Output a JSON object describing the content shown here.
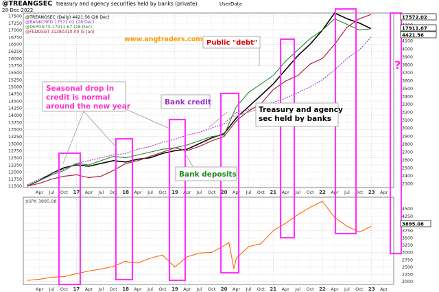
{
  "header": {
    "symbol": "@TREANGSEC",
    "description": "treasury and agency securities held by banks (private)",
    "source": "UserData",
    "date": "28-Dec-2022"
  },
  "legend": [
    {
      "label": "@TREANGSEC (Daily) 4421.56 (28 Dec)",
      "color": "#000000"
    },
    {
      "label": "@BANKCRED 17572.02 (28 Dec)",
      "color": "#9933cc"
    },
    {
      "label": "@DEPOSITS 17911.67 (28 Dec)",
      "color": "#228b22"
    },
    {
      "label": "@FEDDEBT 31380310.00 (5 Jan)",
      "color": "#b0203a"
    }
  ],
  "lower_legend": {
    "label": "$SPX 3895.08",
    "color": "#ff6600"
  },
  "watermark": "www.angtraders.com",
  "annotations": {
    "public_debt": "Public \"debt\"",
    "seasonal": "Seasonal drop in credit is normal around the new year",
    "bank_credit": "Bank credit",
    "treasury": "Treasury and agency sec held by banks",
    "bank_deposits": "Bank deposits",
    "question": "?"
  },
  "right_badges": {
    "upper": [
      "17572.02",
      "17911.67",
      "4421.56"
    ],
    "lower": "3895.08"
  },
  "chart_data": [
    {
      "type": "line",
      "title": "@TREANGSEC treasury and agency securities held by banks (private)",
      "left_axis_ticks": [
        11500,
        11750,
        12000,
        12250,
        12500,
        12750,
        13000,
        13250,
        13500,
        13750,
        14000,
        14250,
        14500,
        14750,
        15000,
        15250,
        15500,
        15750,
        16000,
        16250,
        16500,
        16750,
        17000,
        17250,
        17500
      ],
      "right_axis_ticks": [
        2300,
        2400,
        2500,
        2600,
        2700,
        2800,
        2900,
        3000,
        3100,
        3200,
        3300,
        3400,
        3500,
        3600,
        3700,
        3800,
        3900,
        4000,
        4100,
        4200,
        4300,
        4400
      ],
      "x_ticks": [
        "Apr",
        "Jul",
        "Oct",
        "17",
        "Apr",
        "Jul",
        "Oct",
        "18",
        "Apr",
        "Jul",
        "Oct",
        "19",
        "Apr",
        "Jul",
        "Oct",
        "20",
        "Apr",
        "Jul",
        "Oct",
        "21",
        "Apr",
        "Jul",
        "Oct",
        "22",
        "Apr",
        "Jul",
        "Oct",
        "23",
        "Apr"
      ],
      "x": [
        2016.0,
        2016.25,
        2016.5,
        2016.75,
        2017.0,
        2017.25,
        2017.5,
        2017.75,
        2018.0,
        2018.25,
        2018.5,
        2018.75,
        2019.0,
        2019.25,
        2019.5,
        2019.75,
        2020.0,
        2020.25,
        2020.5,
        2020.75,
        2021.0,
        2021.25,
        2021.5,
        2021.75,
        2022.0,
        2022.25,
        2022.5,
        2022.75,
        2022.99
      ],
      "series": [
        {
          "name": "@TREANGSEC",
          "axis": "left",
          "values": [
            11500,
            11700,
            11950,
            12150,
            12250,
            12200,
            12300,
            12400,
            12350,
            12450,
            12500,
            12650,
            12750,
            12800,
            13000,
            13200,
            13350,
            13900,
            14300,
            14700,
            15100,
            15600,
            16100,
            16500,
            17000,
            17600,
            17400,
            17250,
            17050
          ]
        },
        {
          "name": "@BANKCRED",
          "axis": "left",
          "values": [
            11550,
            11750,
            11950,
            12100,
            12300,
            12400,
            12500,
            12600,
            12650,
            12800,
            12900,
            13050,
            13150,
            13300,
            13400,
            13550,
            13700,
            14100,
            14200,
            14350,
            14450,
            14600,
            14800,
            15000,
            15250,
            15600,
            16000,
            16300,
            16750
          ]
        },
        {
          "name": "@DEPOSITS",
          "axis": "left",
          "values": [
            11500,
            11700,
            11900,
            12050,
            12300,
            12250,
            12400,
            12550,
            12500,
            12600,
            12700,
            12800,
            12850,
            12950,
            13100,
            13250,
            13300,
            14300,
            14800,
            15100,
            15400,
            15900,
            16300,
            16700,
            17000,
            17400,
            17200,
            17000,
            17050
          ]
        },
        {
          "name": "@FEDDEBT",
          "axis": "left",
          "values": [
            11500,
            11600,
            11750,
            11850,
            11900,
            11800,
            11850,
            12050,
            12300,
            12400,
            12550,
            12700,
            12850,
            12750,
            12900,
            13100,
            13250,
            13800,
            14150,
            14400,
            14900,
            15200,
            15400,
            15800,
            16000,
            16500,
            17100,
            17400,
            17550
          ]
        }
      ]
    },
    {
      "type": "line",
      "title": "$SPX 3895.08",
      "y_ticks": [
        2000,
        2250,
        2500,
        2750,
        3000,
        3250,
        3500,
        3750,
        4000,
        4250,
        4500
      ],
      "x": [
        2016.0,
        2016.25,
        2016.5,
        2016.75,
        2017.0,
        2017.25,
        2017.5,
        2017.75,
        2018.0,
        2018.1,
        2018.25,
        2018.5,
        2018.75,
        2019.0,
        2019.25,
        2019.5,
        2019.75,
        2020.0,
        2020.1,
        2020.2,
        2020.25,
        2020.5,
        2020.75,
        2021.0,
        2021.25,
        2021.5,
        2021.75,
        2022.0,
        2022.25,
        2022.5,
        2022.75,
        2022.99
      ],
      "series": [
        {
          "name": "$SPX",
          "values": [
            2040,
            2080,
            2150,
            2170,
            2270,
            2360,
            2430,
            2520,
            2700,
            2650,
            2640,
            2800,
            2910,
            2500,
            2850,
            2980,
            3000,
            3230,
            3340,
            2440,
            2800,
            3200,
            3300,
            3750,
            4000,
            4300,
            4550,
            4760,
            4200,
            3900,
            3700,
            3895
          ]
        }
      ]
    }
  ]
}
